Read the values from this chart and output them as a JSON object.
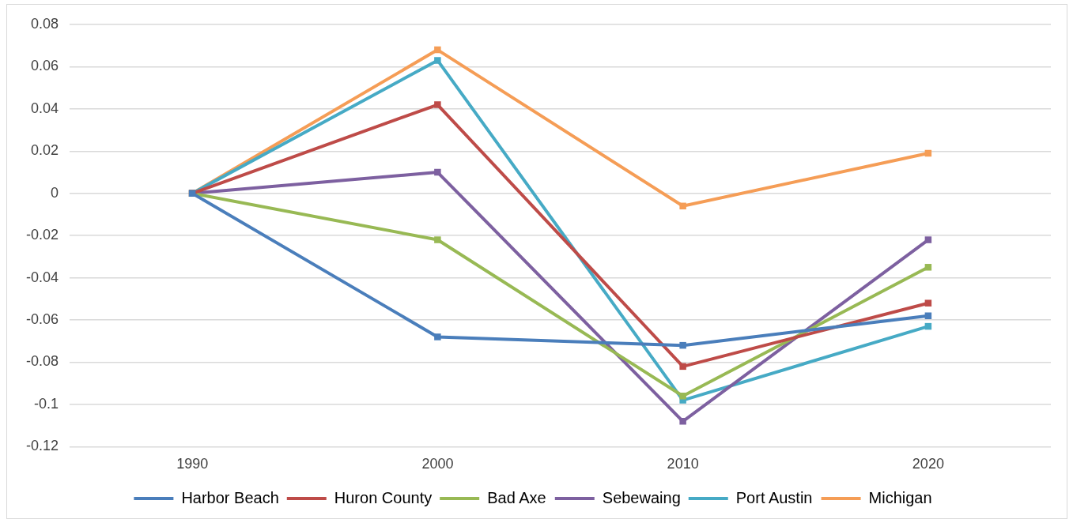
{
  "chart_data": {
    "type": "line",
    "categories": [
      "1990",
      "2000",
      "2010",
      "2020"
    ],
    "series": [
      {
        "name": "Harbor Beach",
        "color": "#4a7ebb",
        "values": [
          0,
          -0.068,
          -0.072,
          -0.058
        ]
      },
      {
        "name": "Huron County",
        "color": "#be4b48",
        "values": [
          0,
          0.042,
          -0.082,
          -0.052
        ]
      },
      {
        "name": "Bad Axe",
        "color": "#98b954",
        "values": [
          0,
          -0.022,
          -0.096,
          -0.035
        ]
      },
      {
        "name": "Sebewaing",
        "color": "#7d60a0",
        "values": [
          0,
          0.01,
          -0.108,
          -0.022
        ]
      },
      {
        "name": "Port Austin",
        "color": "#46aac5",
        "values": [
          0,
          0.063,
          -0.098,
          -0.063
        ]
      },
      {
        "name": "Michigan",
        "color": "#f59d56",
        "values": [
          0,
          0.068,
          -0.006,
          0.019
        ]
      }
    ],
    "ylim": [
      -0.12,
      0.08
    ],
    "yticks": [
      -0.12,
      -0.1,
      -0.08,
      -0.06,
      -0.04,
      -0.02,
      0,
      0.02,
      0.04,
      0.06,
      0.08
    ],
    "grid": "y",
    "legend": "bottom",
    "marker": "square",
    "line_style": "solid"
  }
}
